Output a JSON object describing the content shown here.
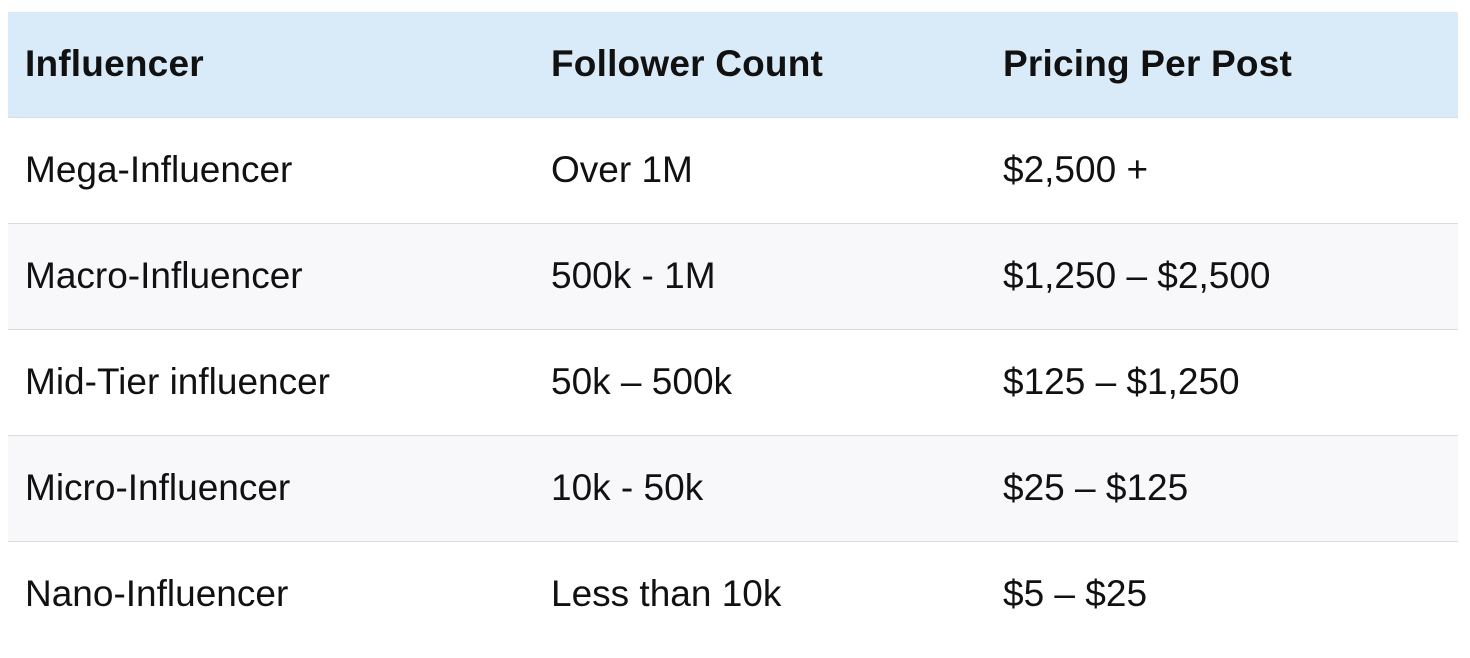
{
  "chart_data": {
    "type": "table",
    "columns": [
      "Influencer",
      "Follower Count",
      "Pricing Per Post"
    ],
    "rows": [
      [
        "Mega-Influencer",
        "Over 1M",
        "$2,500 +"
      ],
      [
        "Macro-Influencer",
        "500k - 1M",
        "$1,250 – $2,500"
      ],
      [
        "Mid-Tier influencer",
        "50k – 500k",
        "$125 – $1,250"
      ],
      [
        "Micro-Influencer",
        "10k - 50k",
        "$25 – $125"
      ],
      [
        "Nano-Influencer",
        "Less than 10k",
        "$5 – $25"
      ]
    ]
  },
  "colors": {
    "header_bg": "#d9eaf8",
    "stripe_bg": "#f8f7fa",
    "border": "#dcdcdc"
  }
}
